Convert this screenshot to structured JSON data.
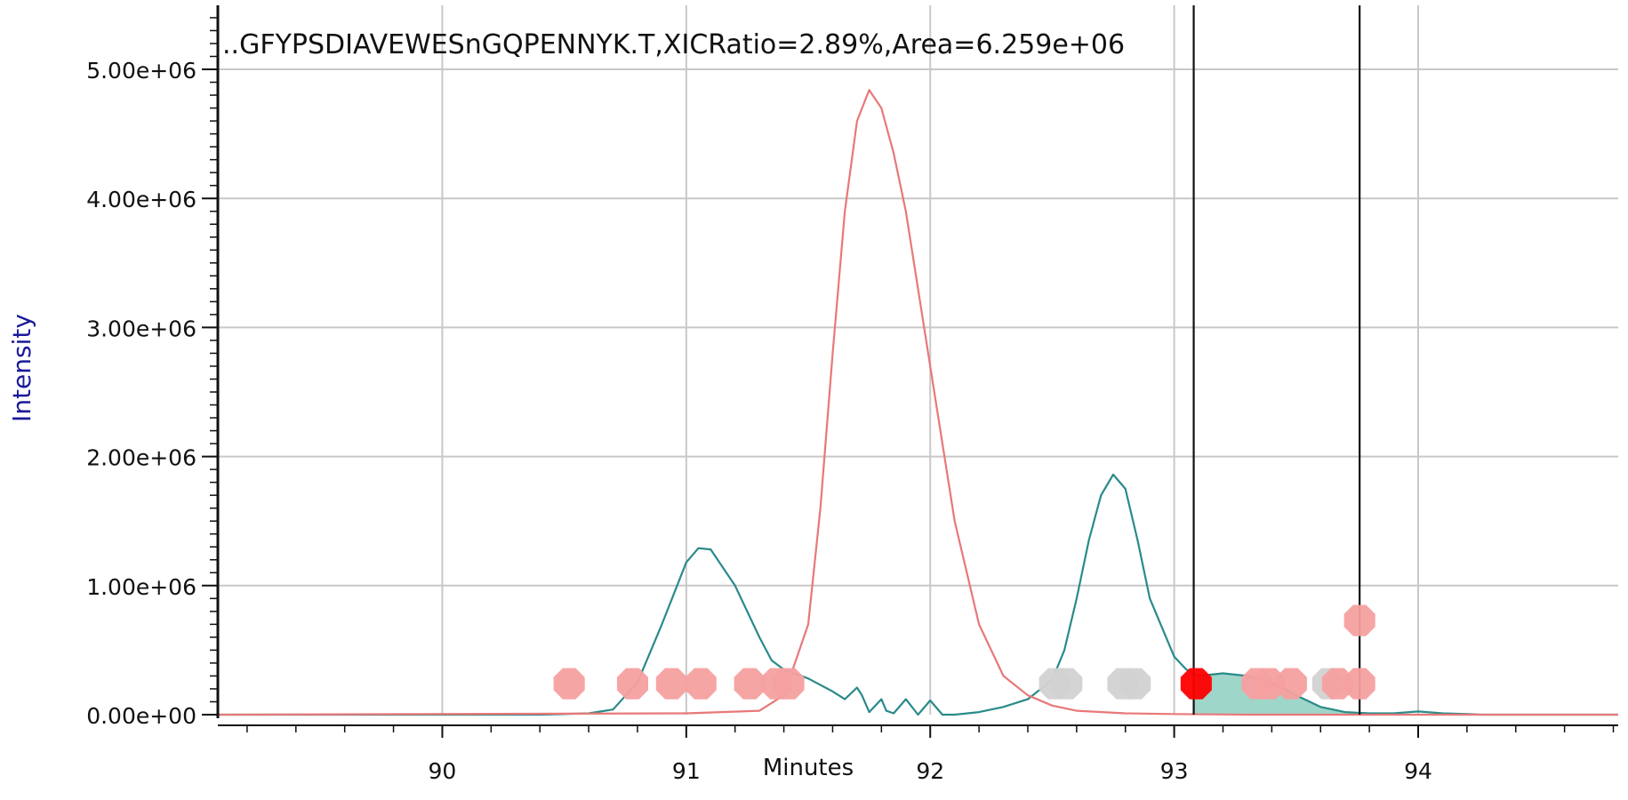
{
  "chart_data": {
    "type": "line",
    "title": "..GFYPSDIAVEWESnGQPENNYK.T,XICRatio=2.89%,Area=6.259e+06",
    "xlabel": "Minutes",
    "ylabel": "Intensity",
    "xlim": [
      89.08,
      94.82
    ],
    "ylim": [
      0,
      5000000
    ],
    "x_ticks": [
      {
        "value": 90,
        "label": "90"
      },
      {
        "value": 91,
        "label": "91"
      },
      {
        "value": 92,
        "label": "92"
      },
      {
        "value": 93,
        "label": "93"
      },
      {
        "value": 94,
        "label": "94"
      }
    ],
    "y_ticks": [
      {
        "value": 0,
        "label": "0.00e+00"
      },
      {
        "value": 1000000,
        "label": "1.00e+06"
      },
      {
        "value": 2000000,
        "label": "2.00e+06"
      },
      {
        "value": 3000000,
        "label": "3.00e+06"
      },
      {
        "value": 4000000,
        "label": "4.00e+06"
      },
      {
        "value": 5000000,
        "label": "5.00e+06"
      }
    ],
    "grid": true,
    "series": [
      {
        "color": "#2a8a8a",
        "x": [
          89.08,
          90.4,
          90.6,
          90.7,
          90.8,
          90.9,
          91.0,
          91.05,
          91.1,
          91.2,
          91.3,
          91.35,
          91.4,
          91.5,
          91.6,
          91.65,
          91.7,
          91.72,
          91.75,
          91.8,
          91.82,
          91.85,
          91.9,
          91.95,
          92.0,
          92.05,
          92.1,
          92.2,
          92.3,
          92.4,
          92.5,
          92.55,
          92.6,
          92.65,
          92.7,
          92.75,
          92.8,
          92.85,
          92.9,
          93.0,
          93.05,
          93.1,
          93.2,
          93.3,
          93.4,
          93.5,
          93.6,
          93.7,
          93.8,
          93.9,
          94.0,
          94.1,
          94.2,
          94.26,
          94.82
        ],
        "y": [
          0,
          0,
          10000,
          40000,
          250000,
          700000,
          1180000,
          1290000,
          1280000,
          1000000,
          600000,
          420000,
          350000,
          280000,
          180000,
          120000,
          210000,
          150000,
          20000,
          120000,
          30000,
          10000,
          120000,
          0,
          110000,
          0,
          0,
          20000,
          60000,
          120000,
          270000,
          500000,
          900000,
          1350000,
          1700000,
          1860000,
          1750000,
          1350000,
          900000,
          450000,
          350000,
          300000,
          320000,
          300000,
          250000,
          150000,
          60000,
          20000,
          10000,
          10000,
          25000,
          10000,
          5000,
          0,
          0
        ]
      },
      {
        "color": "#e87878",
        "x": [
          89.08,
          91.0,
          91.3,
          91.4,
          91.5,
          91.55,
          91.6,
          91.65,
          91.7,
          91.75,
          91.8,
          91.85,
          91.9,
          92.0,
          92.1,
          92.2,
          92.3,
          92.4,
          92.5,
          92.6,
          92.8,
          93.0,
          93.3,
          93.6,
          93.8,
          94.0,
          94.82
        ],
        "y": [
          0,
          10000,
          30000,
          150000,
          700000,
          1600000,
          2800000,
          3900000,
          4600000,
          4840000,
          4700000,
          4350000,
          3900000,
          2700000,
          1500000,
          700000,
          300000,
          150000,
          70000,
          30000,
          10000,
          5000,
          0,
          0,
          0,
          0,
          0
        ]
      }
    ],
    "area": {
      "x_start": 93.08,
      "x_end": 93.76,
      "color": "#9fd6ca",
      "label": "Area=6.259e+06"
    },
    "boundaries": [
      93.08,
      93.76
    ],
    "markers": [
      {
        "x": 90.52,
        "y": 240000,
        "color": "#f5a0a0"
      },
      {
        "x": 90.78,
        "y": 240000,
        "color": "#f5a0a0"
      },
      {
        "x": 90.94,
        "y": 240000,
        "color": "#f5a0a0"
      },
      {
        "x": 91.06,
        "y": 240000,
        "color": "#f5a0a0"
      },
      {
        "x": 91.26,
        "y": 240000,
        "color": "#f5a0a0"
      },
      {
        "x": 91.37,
        "y": 240000,
        "color": "#f5a0a0"
      },
      {
        "x": 91.42,
        "y": 240000,
        "color": "#f5a0a0"
      },
      {
        "x": 92.51,
        "y": 240000,
        "color": "#d2d2d2"
      },
      {
        "x": 92.56,
        "y": 240000,
        "color": "#d2d2d2"
      },
      {
        "x": 92.79,
        "y": 240000,
        "color": "#d2d2d2"
      },
      {
        "x": 92.84,
        "y": 240000,
        "color": "#d2d2d2"
      },
      {
        "x": 93.09,
        "y": 240000,
        "color": "#ff0000"
      },
      {
        "x": 93.34,
        "y": 240000,
        "color": "#f5a0a0"
      },
      {
        "x": 93.39,
        "y": 240000,
        "color": "#f5a0a0"
      },
      {
        "x": 93.48,
        "y": 240000,
        "color": "#f5a0a0"
      },
      {
        "x": 93.63,
        "y": 240000,
        "color": "#d2d2d2"
      },
      {
        "x": 93.67,
        "y": 240000,
        "color": "#f5a0a0"
      },
      {
        "x": 93.76,
        "y": 240000,
        "color": "#f5a0a0"
      },
      {
        "x": 93.76,
        "y": 730000,
        "color": "#f5a0a0"
      }
    ]
  }
}
